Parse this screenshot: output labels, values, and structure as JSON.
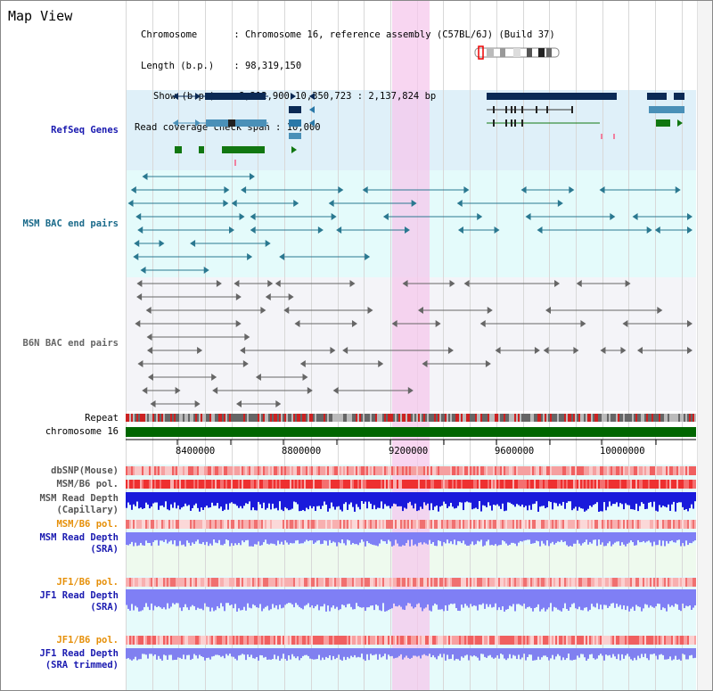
{
  "page_title": "Map View",
  "info": {
    "chromosome_label": "Chromosome",
    "chromosome_value": "Chromosome 16, reference assembly (C57BL/6J) (Build 37)",
    "length_label": "Length (b.p.)",
    "length_value": "98,319,150",
    "show_label": "Show (b.p.)",
    "show_value": "8,212,900-10,350,723 : 2,137,824 bp",
    "coverage_label": "Read coverage check span",
    "coverage_value": "10,000"
  },
  "tracks": {
    "refseq": "RefSeq Genes",
    "msm_bac": "MSM BAC end pairs",
    "b6n_bac": "B6N BAC end pairs",
    "repeat": "Repeat",
    "chromosome": "chromosome 16",
    "dbsnp": "dbSNP(Mouse)",
    "msm_b6_pol_1": "MSM/B6 pol.",
    "msm_depth_cap_1": "MSM Read Depth",
    "msm_depth_cap_2": "(Capillary)",
    "msm_b6_pol_2": "MSM/B6 pol.",
    "msm_depth_sra_1": "MSM Read Depth",
    "msm_depth_sra_2": "(SRA)",
    "jf1_pol_1": "JF1/B6 pol.",
    "jf1_depth_1": "JF1 Read Depth",
    "jf1_depth_2": "(SRA)",
    "jf1_pol_2": "JF1/B6 pol.",
    "jf1_trim_1": "JF1 Read Depth",
    "jf1_trim_2": "(SRA trimmed)"
  },
  "axis_ticks": [
    "8400000",
    "8800000",
    "9200000",
    "9600000",
    "10000000"
  ],
  "colors": {
    "refseq_bg": "#dff0f9",
    "msm_bac_bg": "#e4fbfb",
    "b6n_bac_bg": "#f4f4f8",
    "highlight": "#f7d8f0",
    "chromosome_bar": "#006600",
    "msm_label": "#1a6a8a",
    "depth_blue": "#1a1adb",
    "depth_sra": "#7f7ff5",
    "orange": "#e6900a",
    "navy": "#1a1ab0"
  }
}
